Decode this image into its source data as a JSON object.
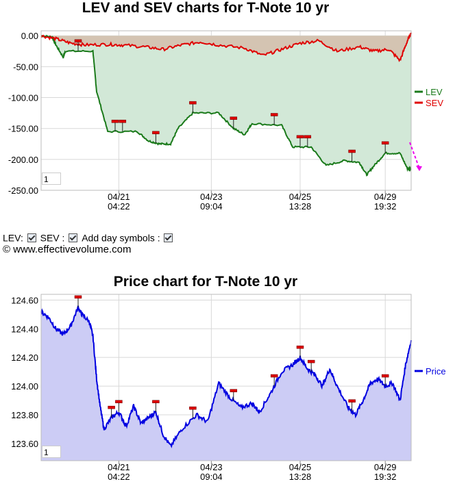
{
  "chart_data": [
    {
      "type": "line",
      "title": "LEV and SEV charts for T-Note 10 yr",
      "y_ticks": [
        "0.00",
        "-50.00",
        "-100.00",
        "-150.00",
        "-200.00",
        "-250.00"
      ],
      "ylim": [
        -250,
        8
      ],
      "x_ticks": [
        {
          "date": "04/21",
          "time": "04:22",
          "x": 0.21
        },
        {
          "date": "04/23",
          "time": "09:04",
          "x": 0.46
        },
        {
          "date": "04/25",
          "time": "13:28",
          "x": 0.7
        },
        {
          "date": "04/29",
          "time": "19:32",
          "x": 0.93
        }
      ],
      "legend": "right",
      "grid": true,
      "zoom_box": "1",
      "series": [
        {
          "name": "LEV",
          "color": "#1a7a1a",
          "points": [
            [
              0,
              0
            ],
            [
              0.03,
              -2
            ],
            [
              0.04,
              -15
            ],
            [
              0.06,
              -35
            ],
            [
              0.065,
              -25
            ],
            [
              0.14,
              -25
            ],
            [
              0.15,
              -90
            ],
            [
              0.18,
              -155
            ],
            [
              0.26,
              -155
            ],
            [
              0.29,
              -170
            ],
            [
              0.32,
              -175
            ],
            [
              0.35,
              -175
            ],
            [
              0.37,
              -150
            ],
            [
              0.41,
              -125
            ],
            [
              0.48,
              -125
            ],
            [
              0.52,
              -150
            ],
            [
              0.55,
              -160
            ],
            [
              0.57,
              -142
            ],
            [
              0.65,
              -145
            ],
            [
              0.68,
              -180
            ],
            [
              0.73,
              -180
            ],
            [
              0.77,
              -210
            ],
            [
              0.82,
              -202
            ],
            [
              0.86,
              -205
            ],
            [
              0.88,
              -225
            ],
            [
              0.9,
              -210
            ],
            [
              0.93,
              -190
            ],
            [
              0.97,
              -190
            ],
            [
              0.99,
              -215
            ],
            [
              1.0,
              -215
            ]
          ]
        },
        {
          "name": "SEV",
          "color": "#e00000",
          "points": [
            [
              0,
              0
            ],
            [
              0.04,
              -5
            ],
            [
              0.08,
              -12
            ],
            [
              0.12,
              -15
            ],
            [
              0.18,
              -14
            ],
            [
              0.22,
              -15
            ],
            [
              0.28,
              -18
            ],
            [
              0.33,
              -22
            ],
            [
              0.38,
              -15
            ],
            [
              0.43,
              -10
            ],
            [
              0.48,
              -15
            ],
            [
              0.55,
              -20
            ],
            [
              0.6,
              -32
            ],
            [
              0.65,
              -22
            ],
            [
              0.7,
              -12
            ],
            [
              0.75,
              -8
            ],
            [
              0.8,
              -25
            ],
            [
              0.86,
              -18
            ],
            [
              0.9,
              -25
            ],
            [
              0.94,
              -22
            ],
            [
              0.97,
              -40
            ],
            [
              0.99,
              -8
            ],
            [
              1.0,
              5
            ]
          ]
        }
      ]
    },
    {
      "type": "line",
      "title": "Price chart for T-Note 10 yr",
      "y_ticks": [
        "124.60",
        "124.40",
        "124.20",
        "124.00",
        "123.80",
        "123.60"
      ],
      "ylim": [
        123.48,
        124.64
      ],
      "x_ticks": [
        {
          "date": "04/21",
          "time": "04:22",
          "x": 0.21
        },
        {
          "date": "04/23",
          "time": "09:04",
          "x": 0.46
        },
        {
          "date": "04/25",
          "time": "13:28",
          "x": 0.7
        },
        {
          "date": "04/29",
          "time": "19:32",
          "x": 0.93
        }
      ],
      "legend": "right",
      "grid": true,
      "zoom_box": "1",
      "series": [
        {
          "name": "Price",
          "color": "#0000e0",
          "points": [
            [
              0,
              124.52
            ],
            [
              0.02,
              124.48
            ],
            [
              0.04,
              124.4
            ],
            [
              0.06,
              124.36
            ],
            [
              0.08,
              124.42
            ],
            [
              0.1,
              124.55
            ],
            [
              0.11,
              124.5
            ],
            [
              0.13,
              124.45
            ],
            [
              0.14,
              124.35
            ],
            [
              0.15,
              124.05
            ],
            [
              0.16,
              123.85
            ],
            [
              0.17,
              123.7
            ],
            [
              0.19,
              123.78
            ],
            [
              0.21,
              123.82
            ],
            [
              0.23,
              123.72
            ],
            [
              0.25,
              123.86
            ],
            [
              0.27,
              123.74
            ],
            [
              0.29,
              123.78
            ],
            [
              0.31,
              123.82
            ],
            [
              0.33,
              123.66
            ],
            [
              0.35,
              123.58
            ],
            [
              0.38,
              123.7
            ],
            [
              0.42,
              123.8
            ],
            [
              0.45,
              123.75
            ],
            [
              0.48,
              124.02
            ],
            [
              0.51,
              123.92
            ],
            [
              0.54,
              123.85
            ],
            [
              0.57,
              123.88
            ],
            [
              0.59,
              123.82
            ],
            [
              0.62,
              123.95
            ],
            [
              0.65,
              124.1
            ],
            [
              0.68,
              124.15
            ],
            [
              0.7,
              124.2
            ],
            [
              0.72,
              124.12
            ],
            [
              0.74,
              124.08
            ],
            [
              0.76,
              124.0
            ],
            [
              0.78,
              124.12
            ],
            [
              0.8,
              124.0
            ],
            [
              0.83,
              123.85
            ],
            [
              0.85,
              123.8
            ],
            [
              0.87,
              123.9
            ],
            [
              0.89,
              124.02
            ],
            [
              0.91,
              124.05
            ],
            [
              0.93,
              124.0
            ],
            [
              0.95,
              124.02
            ],
            [
              0.97,
              123.9
            ],
            [
              0.985,
              124.15
            ],
            [
              1.0,
              124.32
            ]
          ]
        }
      ]
    }
  ],
  "controls": {
    "lev_label": "LEV:",
    "sev_label": "SEV :",
    "symbols_label": "Add day symbols :"
  },
  "copyright": "© www.effectivevolume.com"
}
